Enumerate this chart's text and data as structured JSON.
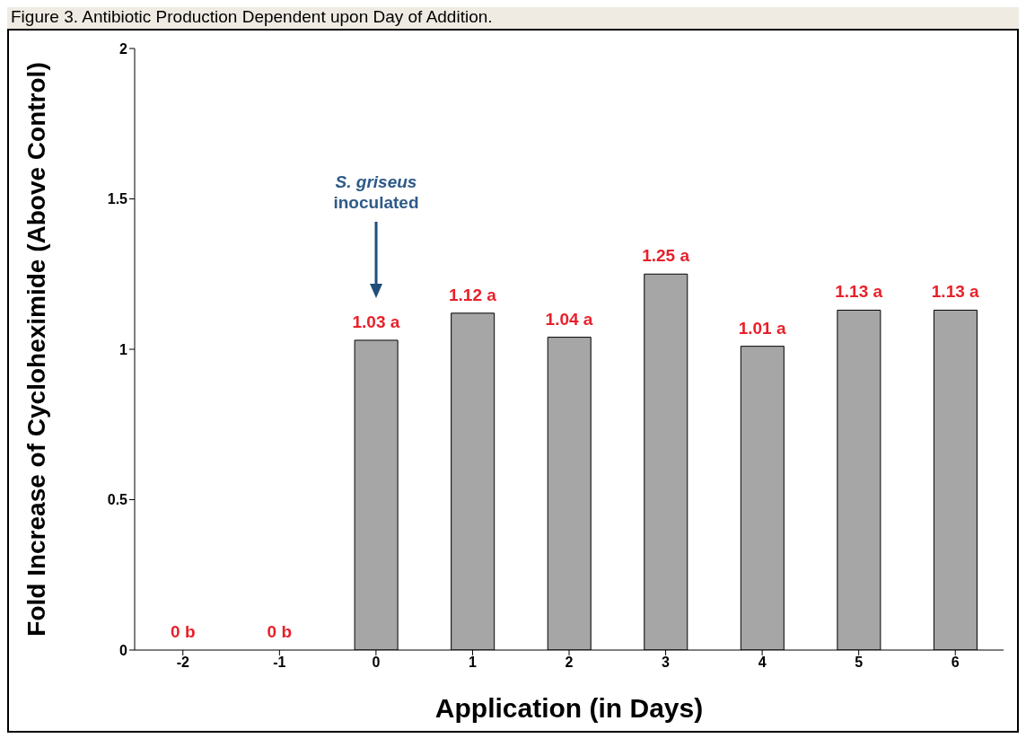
{
  "chart_data": {
    "type": "bar",
    "title": "Figure 3. Antibiotic Production Dependent upon Day of Addition.",
    "xlabel": "Application (in Days)",
    "ylabel": "Fold Increase of Cycloheximide (Above Control)",
    "categories": [
      "-2",
      "-1",
      "0",
      "1",
      "2",
      "3",
      "4",
      "5",
      "6"
    ],
    "values": [
      0,
      0,
      1.03,
      1.12,
      1.04,
      1.25,
      1.01,
      1.13,
      1.13
    ],
    "value_labels": [
      "0 b",
      "0 b",
      "1.03 a",
      "1.12 a",
      "1.04 a",
      "1.25 a",
      "1.01 a",
      "1.13 a",
      "1.13 a"
    ],
    "color": "#a6a6a6",
    "ylim": [
      0,
      2
    ],
    "yticks": [
      0,
      0.5,
      1,
      1.5,
      2
    ],
    "grid": false,
    "legend": false,
    "annotations": [
      "S. griseus inoculated"
    ]
  }
}
